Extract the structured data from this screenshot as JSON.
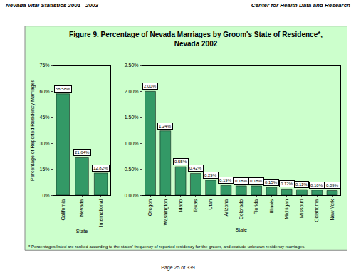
{
  "header": {
    "left": "Nevada Vital Statistics 2001 - 2003",
    "right": "Center for Health Data and Research"
  },
  "title": "Figure 9.  Percentage of Nevada Marriages by Groom's State of Residence*,\nNevada 2002",
  "footnote": "* Percentages listed are ranked according to the states' frequency of reported residency for the groom, and exclude unknown residency marriages.",
  "page": "Page 25 of 339",
  "chart_data": [
    {
      "type": "bar",
      "x_label": "State",
      "y_label": "Percentage of Reported Residency Marriages",
      "categories": [
        "California",
        "Nevada",
        "International"
      ],
      "values": [
        58.58,
        21.64,
        12.82
      ],
      "value_labels": [
        "58.58%",
        "21.64%",
        "12.82%"
      ],
      "data_labels": true,
      "color": "#339966",
      "ylim": [
        0,
        75
      ],
      "yticks": [
        {
          "value": 0,
          "label": "0%"
        },
        {
          "value": 15,
          "label": "15%"
        },
        {
          "value": 30,
          "label": "30%"
        },
        {
          "value": 45,
          "label": "45%"
        },
        {
          "value": 60,
          "label": "60%"
        },
        {
          "value": 75,
          "label": "75%"
        }
      ],
      "grid": false
    },
    {
      "type": "bar",
      "x_label": "State",
      "categories": [
        "Oregon",
        "Washington",
        "Idaho",
        "Texas",
        "Utah",
        "Arizona",
        "Colorado",
        "Florida",
        "Illinois",
        "Michigan",
        "Missouri",
        "Oklahoma",
        "New York"
      ],
      "values": [
        2.0,
        1.24,
        0.55,
        0.42,
        0.29,
        0.19,
        0.18,
        0.18,
        0.15,
        0.12,
        0.11,
        0.1,
        0.09
      ],
      "value_labels": [
        "2.00%",
        "1.24%",
        "0.55%",
        "0.42%",
        "0.29%",
        "0.19%",
        "0.18%",
        "0.18%",
        "0.15%",
        "0.12%",
        "0.11%",
        "0.10%",
        "0.09%"
      ],
      "data_labels": true,
      "color": "#339966",
      "ylim": [
        0,
        2.5
      ],
      "yticks": [
        {
          "value": 0,
          "label": "0.00%"
        },
        {
          "value": 0.5,
          "label": "0.50%"
        },
        {
          "value": 1,
          "label": "1.00%"
        },
        {
          "value": 1.5,
          "label": "1.50%"
        },
        {
          "value": 2,
          "label": "2.00%"
        },
        {
          "value": 2.5,
          "label": "2.50%"
        }
      ],
      "grid": false
    }
  ]
}
